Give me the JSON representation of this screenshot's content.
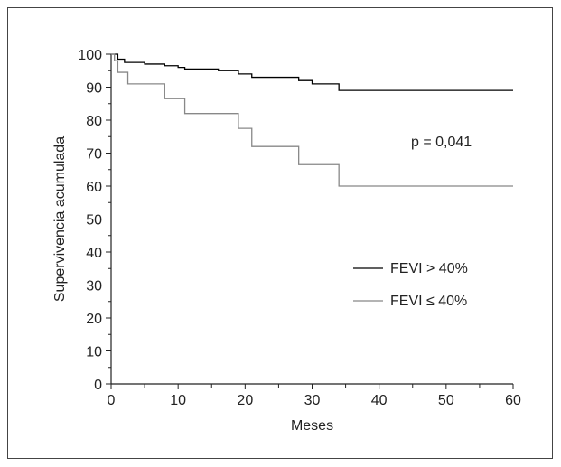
{
  "chart_data": {
    "type": "line",
    "xlabel": "Meses",
    "ylabel": "Supervivencia acumulada",
    "xlim": [
      0,
      60
    ],
    "ylim": [
      0,
      100
    ],
    "xticks": [
      0,
      10,
      20,
      30,
      40,
      50,
      60
    ],
    "yticks": [
      0,
      10,
      20,
      30,
      40,
      50,
      60,
      70,
      80,
      90,
      100
    ],
    "annotation": "p = 0,041",
    "grid": false,
    "legend_position": "right",
    "series": [
      {
        "name": "FEVI > 40%",
        "color": "#000000",
        "step": true,
        "x": [
          0,
          1,
          2,
          5,
          8,
          10,
          11,
          16,
          19,
          21,
          28,
          30,
          34,
          60
        ],
        "y": [
          100,
          98.5,
          97.5,
          97,
          96.5,
          96,
          95.5,
          95,
          94,
          93,
          92,
          91,
          89,
          89
        ]
      },
      {
        "name": "FEVI ≤ 40%",
        "color": "#888888",
        "step": true,
        "x": [
          0,
          0.5,
          1,
          2.5,
          8,
          11,
          19,
          21,
          28,
          34,
          60
        ],
        "y": [
          100,
          98,
          94.5,
          91,
          86.5,
          82,
          77.5,
          72,
          66.5,
          60,
          60
        ]
      }
    ]
  }
}
